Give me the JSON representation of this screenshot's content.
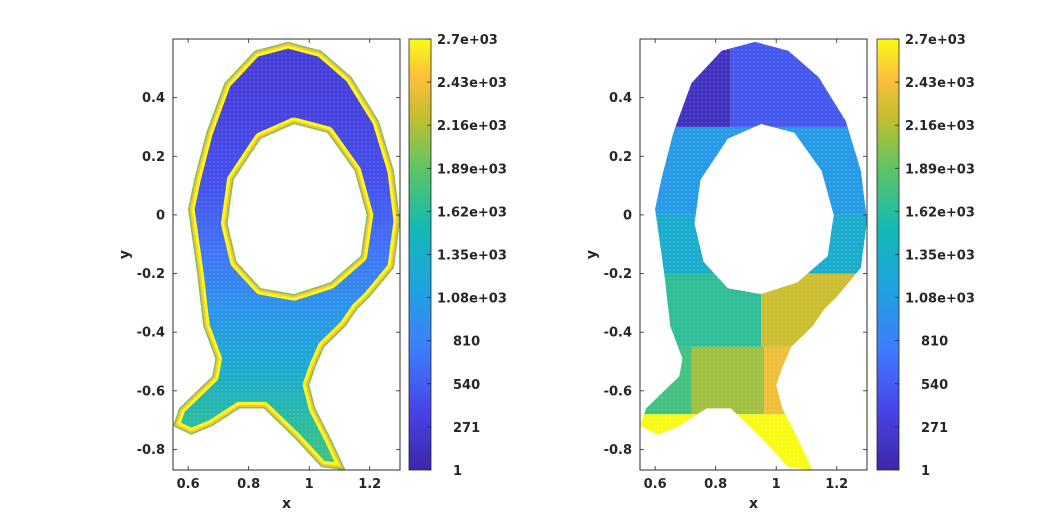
{
  "chart_data": [
    {
      "type": "scatter",
      "title": "",
      "xlabel": "x",
      "ylabel": "y",
      "xlim": [
        0.55,
        1.3
      ],
      "ylim": [
        -0.87,
        0.6
      ],
      "xticks": [
        "0.6",
        "0.8",
        "1",
        "1.2"
      ],
      "yticks": [
        "0.4",
        "0.2",
        "0",
        "-0.2",
        "-0.4",
        "-0.6",
        "-0.8"
      ],
      "grid": false,
      "colormap": "parula",
      "colorbar": {
        "range": [
          1,
          2700
        ],
        "tick_labels": [
          "2.7e+03",
          "2.43e+03",
          "2.16e+03",
          "1.89e+03",
          "1.62e+03",
          "1.35e+03",
          "1.08e+03",
          "810",
          "540",
          "271",
          "1"
        ]
      },
      "shape": {
        "outer_outline": [
          [
            0.93,
            0.59
          ],
          [
            1.04,
            0.56
          ],
          [
            1.14,
            0.47
          ],
          [
            1.23,
            0.32
          ],
          [
            1.28,
            0.15
          ],
          [
            1.3,
            -0.02
          ],
          [
            1.28,
            -0.18
          ],
          [
            1.2,
            -0.28
          ],
          [
            1.16,
            -0.32
          ],
          [
            1.12,
            -0.38
          ],
          [
            1.05,
            -0.45
          ],
          [
            1.02,
            -0.52
          ],
          [
            1.0,
            -0.58
          ],
          [
            1.02,
            -0.66
          ],
          [
            1.07,
            -0.76
          ],
          [
            1.12,
            -0.87
          ],
          [
            1.04,
            -0.86
          ],
          [
            0.95,
            -0.76
          ],
          [
            0.85,
            -0.66
          ],
          [
            0.77,
            -0.66
          ],
          [
            0.68,
            -0.72
          ],
          [
            0.61,
            -0.75
          ],
          [
            0.55,
            -0.72
          ],
          [
            0.57,
            -0.66
          ],
          [
            0.63,
            -0.6
          ],
          [
            0.68,
            -0.55
          ],
          [
            0.69,
            -0.49
          ],
          [
            0.65,
            -0.38
          ],
          [
            0.63,
            -0.2
          ],
          [
            0.6,
            0.02
          ],
          [
            0.62,
            0.12
          ],
          [
            0.66,
            0.28
          ],
          [
            0.72,
            0.45
          ],
          [
            0.82,
            0.56
          ]
        ],
        "hole_outline": [
          [
            0.95,
            0.31
          ],
          [
            1.06,
            0.28
          ],
          [
            1.15,
            0.15
          ],
          [
            1.19,
            0.0
          ],
          [
            1.17,
            -0.14
          ],
          [
            1.07,
            -0.23
          ],
          [
            0.95,
            -0.27
          ],
          [
            0.84,
            -0.25
          ],
          [
            0.76,
            -0.16
          ],
          [
            0.73,
            -0.03
          ],
          [
            0.75,
            0.12
          ],
          [
            0.84,
            0.26
          ]
        ]
      },
      "value_description": "Values near 2.7e+03 along the outer boundary and hole boundary; interior low near top (about 200) increasing toward the bottom (about 1800)."
    },
    {
      "type": "scatter",
      "title": "",
      "xlabel": "x",
      "ylabel": "y",
      "xlim": [
        0.55,
        1.3
      ],
      "ylim": [
        -0.87,
        0.6
      ],
      "xticks": [
        "0.6",
        "0.8",
        "1",
        "1.2"
      ],
      "yticks": [
        "0.4",
        "0.2",
        "0",
        "-0.2",
        "-0.4",
        "-0.6",
        "-0.8"
      ],
      "grid": false,
      "colormap": "parula",
      "colorbar": {
        "range": [
          1,
          2700
        ],
        "tick_labels": [
          "2.7e+03",
          "2.43e+03",
          "2.16e+03",
          "1.89e+03",
          "1.62e+03",
          "1.35e+03",
          "1.08e+03",
          "810",
          "540",
          "271",
          "1"
        ]
      },
      "shape": {
        "outer_outline": [
          [
            0.93,
            0.59
          ],
          [
            1.04,
            0.56
          ],
          [
            1.14,
            0.47
          ],
          [
            1.23,
            0.32
          ],
          [
            1.28,
            0.15
          ],
          [
            1.3,
            -0.02
          ],
          [
            1.28,
            -0.18
          ],
          [
            1.2,
            -0.28
          ],
          [
            1.16,
            -0.32
          ],
          [
            1.12,
            -0.38
          ],
          [
            1.05,
            -0.45
          ],
          [
            1.02,
            -0.52
          ],
          [
            1.0,
            -0.58
          ],
          [
            1.02,
            -0.66
          ],
          [
            1.07,
            -0.76
          ],
          [
            1.12,
            -0.87
          ],
          [
            1.04,
            -0.86
          ],
          [
            0.95,
            -0.76
          ],
          [
            0.85,
            -0.66
          ],
          [
            0.77,
            -0.66
          ],
          [
            0.68,
            -0.72
          ],
          [
            0.61,
            -0.75
          ],
          [
            0.55,
            -0.72
          ],
          [
            0.57,
            -0.66
          ],
          [
            0.63,
            -0.6
          ],
          [
            0.68,
            -0.55
          ],
          [
            0.69,
            -0.49
          ],
          [
            0.65,
            -0.38
          ],
          [
            0.63,
            -0.2
          ],
          [
            0.6,
            0.02
          ],
          [
            0.62,
            0.12
          ],
          [
            0.66,
            0.28
          ],
          [
            0.72,
            0.45
          ],
          [
            0.82,
            0.56
          ]
        ],
        "hole_outline": [
          [
            0.95,
            0.31
          ],
          [
            1.06,
            0.28
          ],
          [
            1.15,
            0.15
          ],
          [
            1.19,
            0.0
          ],
          [
            1.17,
            -0.14
          ],
          [
            1.07,
            -0.23
          ],
          [
            0.95,
            -0.27
          ],
          [
            0.84,
            -0.25
          ],
          [
            0.76,
            -0.16
          ],
          [
            0.73,
            -0.03
          ],
          [
            0.75,
            0.12
          ],
          [
            0.84,
            0.26
          ]
        ]
      },
      "blocks": [
        {
          "x": [
            0.55,
            0.85
          ],
          "y": [
            0.3,
            0.6
          ],
          "value": 150
        },
        {
          "x": [
            0.85,
            1.3
          ],
          "y": [
            0.3,
            0.6
          ],
          "value": 500
        },
        {
          "x": [
            0.55,
            1.3
          ],
          "y": [
            0.0,
            0.3
          ],
          "value": 1050
        },
        {
          "x": [
            0.55,
            1.3
          ],
          "y": [
            -0.2,
            0.0
          ],
          "value": 1300
        },
        {
          "x": [
            0.55,
            0.95
          ],
          "y": [
            -0.45,
            -0.2
          ],
          "value": 1650
        },
        {
          "x": [
            0.95,
            1.3
          ],
          "y": [
            -0.45,
            -0.2
          ],
          "value": 2250
        },
        {
          "x": [
            0.55,
            0.72
          ],
          "y": [
            -0.68,
            -0.45
          ],
          "value": 1750
        },
        {
          "x": [
            0.72,
            0.96
          ],
          "y": [
            -0.68,
            -0.45
          ],
          "value": 2100
        },
        {
          "x": [
            0.96,
            1.3
          ],
          "y": [
            -0.68,
            -0.45
          ],
          "value": 2400
        },
        {
          "x": [
            0.55,
            1.3
          ],
          "y": [
            -0.87,
            -0.68
          ],
          "value": 2700
        }
      ]
    }
  ]
}
